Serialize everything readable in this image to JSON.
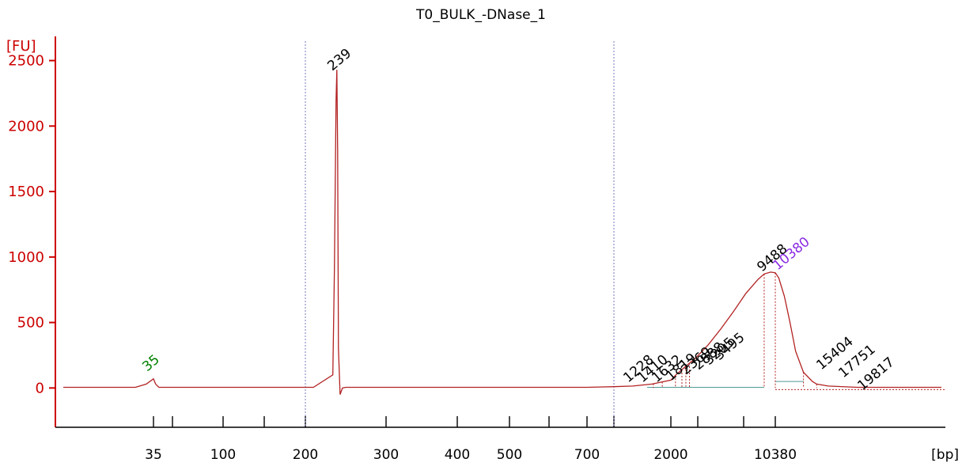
{
  "chart_data": {
    "type": "line",
    "title": "T0_BULK_-DNase_1",
    "ylabel": "[FU]",
    "xlabel": "[bp]",
    "ylim": [
      -300,
      2600
    ],
    "y_ticks": [
      0,
      500,
      1000,
      1500,
      2000,
      2500
    ],
    "x_ticks": [
      "35",
      "100",
      "200",
      "300",
      "400",
      "500",
      "700",
      "2000",
      "10380"
    ],
    "series": [
      {
        "x": [
          10,
          30,
          33,
          35,
          37,
          40,
          60,
          150,
          210,
          234,
          236,
          238,
          239,
          240,
          241,
          243,
          246,
          250,
          300,
          700,
          800,
          1200,
          1600,
          2000,
          2400,
          3000,
          4000,
          5000,
          6000,
          7000,
          8000,
          9000,
          9488,
          10000,
          10380,
          11000,
          12000,
          13000,
          14000,
          15404,
          17000,
          17751,
          19817,
          25000,
          40000
        ],
        "values": [
          5,
          5,
          30,
          70,
          30,
          5,
          5,
          5,
          5,
          100,
          900,
          2200,
          2430,
          1800,
          300,
          -50,
          0,
          5,
          5,
          5,
          10,
          15,
          30,
          60,
          100,
          150,
          230,
          330,
          450,
          580,
          720,
          830,
          870,
          885,
          880,
          840,
          700,
          500,
          280,
          120,
          50,
          30,
          15,
          5,
          5
        ]
      }
    ],
    "peak_labels": [
      {
        "text": "35",
        "color": "#008000"
      },
      {
        "text": "239",
        "color": "#000000"
      },
      {
        "text": "1228",
        "color": "#000000"
      },
      {
        "text": "1410",
        "color": "#000000"
      },
      {
        "text": "1632",
        "color": "#000000"
      },
      {
        "text": "1819",
        "color": "#000000"
      },
      {
        "text": "2369",
        "color": "#000000"
      },
      {
        "text": "2888",
        "color": "#000000"
      },
      {
        "text": "3205",
        "color": "#000000"
      },
      {
        "text": "3495",
        "color": "#000000"
      },
      {
        "text": "9488",
        "color": "#000000"
      },
      {
        "text": "10380",
        "color": "#8a2be2"
      },
      {
        "text": "15404",
        "color": "#000000"
      },
      {
        "text": "17751",
        "color": "#000000"
      },
      {
        "text": "19817",
        "color": "#000000"
      }
    ],
    "colors": {
      "trace": "#b22222",
      "y_axis": "#cc0000",
      "x_axis": "#000000",
      "marker_line": "#7777bb",
      "baseline": "#4f9a94"
    }
  }
}
